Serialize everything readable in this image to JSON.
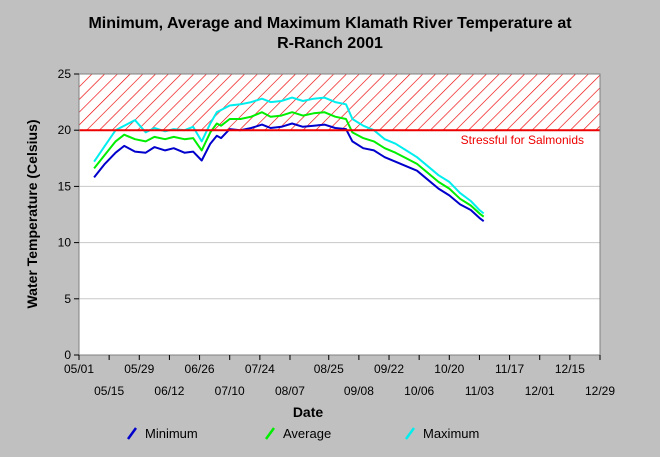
{
  "chart_data": {
    "type": "line",
    "title_line1": "Minimum, Average and Maximum Klamath River Temperature at",
    "title_line2": "R-Ranch 2001",
    "xlabel": "Date",
    "ylabel": "Water Temperature (Celsius)",
    "ylim": [
      0,
      25
    ],
    "yticks": [
      0,
      5,
      10,
      15,
      20,
      25
    ],
    "xlim": [
      "2001-05-01",
      "2001-12-29"
    ],
    "xticks_upper": [
      "05/01",
      "05/29",
      "06/26",
      "07/24",
      "08/25",
      "09/22",
      "10/20",
      "11/17",
      "12/15"
    ],
    "xticks_lower": [
      "05/15",
      "06/12",
      "07/10",
      "08/07",
      "09/08",
      "10/06",
      "11/03",
      "12/01",
      "12/29"
    ],
    "grid": "horizontal",
    "threshold": {
      "value": 20,
      "label": "Stressful for Salmonids",
      "color": "#ee0000",
      "band_top": 25
    },
    "series": [
      {
        "name": "Minimum",
        "color": "#0000cc",
        "points": [
          [
            "05/08",
            15.8
          ],
          [
            "05/13",
            17.0
          ],
          [
            "05/18",
            18.0
          ],
          [
            "05/22",
            18.6
          ],
          [
            "05/27",
            18.1
          ],
          [
            "06/01",
            18.0
          ],
          [
            "06/05",
            18.5
          ],
          [
            "06/10",
            18.2
          ],
          [
            "06/14",
            18.4
          ],
          [
            "06/19",
            18.0
          ],
          [
            "06/23",
            18.1
          ],
          [
            "06/27",
            17.3
          ],
          [
            "07/01",
            18.8
          ],
          [
            "07/04",
            19.5
          ],
          [
            "07/06",
            19.3
          ],
          [
            "07/10",
            20.1
          ],
          [
            "07/15",
            20.0
          ],
          [
            "07/20",
            20.2
          ],
          [
            "07/25",
            20.5
          ],
          [
            "07/29",
            20.2
          ],
          [
            "08/03",
            20.3
          ],
          [
            "08/08",
            20.6
          ],
          [
            "08/13",
            20.3
          ],
          [
            "08/18",
            20.4
          ],
          [
            "08/23",
            20.5
          ],
          [
            "08/28",
            20.2
          ],
          [
            "09/02",
            20.1
          ],
          [
            "09/05",
            19.0
          ],
          [
            "09/10",
            18.4
          ],
          [
            "09/15",
            18.2
          ],
          [
            "09/20",
            17.6
          ],
          [
            "09/25",
            17.2
          ],
          [
            "09/30",
            16.8
          ],
          [
            "10/05",
            16.4
          ],
          [
            "10/10",
            15.6
          ],
          [
            "10/15",
            14.8
          ],
          [
            "10/20",
            14.2
          ],
          [
            "10/25",
            13.4
          ],
          [
            "10/30",
            12.9
          ],
          [
            "11/03",
            12.2
          ],
          [
            "11/05",
            11.9
          ]
        ]
      },
      {
        "name": "Average",
        "color": "#00ee00",
        "points": [
          [
            "05/08",
            16.6
          ],
          [
            "05/13",
            17.8
          ],
          [
            "05/18",
            19.0
          ],
          [
            "05/22",
            19.6
          ],
          [
            "05/27",
            19.2
          ],
          [
            "06/01",
            19.0
          ],
          [
            "06/05",
            19.4
          ],
          [
            "06/10",
            19.2
          ],
          [
            "06/14",
            19.4
          ],
          [
            "06/19",
            19.2
          ],
          [
            "06/23",
            19.3
          ],
          [
            "06/27",
            18.2
          ],
          [
            "07/01",
            19.8
          ],
          [
            "07/04",
            20.6
          ],
          [
            "07/06",
            20.4
          ],
          [
            "07/10",
            21.0
          ],
          [
            "07/15",
            21.0
          ],
          [
            "07/20",
            21.2
          ],
          [
            "07/25",
            21.6
          ],
          [
            "07/29",
            21.2
          ],
          [
            "08/03",
            21.3
          ],
          [
            "08/08",
            21.6
          ],
          [
            "08/13",
            21.3
          ],
          [
            "08/18",
            21.5
          ],
          [
            "08/23",
            21.6
          ],
          [
            "08/28",
            21.2
          ],
          [
            "09/02",
            21.0
          ],
          [
            "09/05",
            19.8
          ],
          [
            "09/10",
            19.3
          ],
          [
            "09/15",
            19.0
          ],
          [
            "09/20",
            18.4
          ],
          [
            "09/25",
            18.0
          ],
          [
            "09/30",
            17.5
          ],
          [
            "10/05",
            17.0
          ],
          [
            "10/10",
            16.2
          ],
          [
            "10/15",
            15.4
          ],
          [
            "10/20",
            14.8
          ],
          [
            "10/25",
            13.9
          ],
          [
            "10/30",
            13.3
          ],
          [
            "11/03",
            12.6
          ],
          [
            "11/05",
            12.3
          ]
        ]
      },
      {
        "name": "Maximum",
        "color": "#00eeee",
        "points": [
          [
            "05/08",
            17.2
          ],
          [
            "05/13",
            18.6
          ],
          [
            "05/18",
            20.0
          ],
          [
            "05/22",
            20.4
          ],
          [
            "05/27",
            20.9
          ],
          [
            "06/01",
            19.8
          ],
          [
            "06/05",
            20.2
          ],
          [
            "06/10",
            19.9
          ],
          [
            "06/14",
            20.1
          ],
          [
            "06/19",
            20.0
          ],
          [
            "06/23",
            20.3
          ],
          [
            "06/27",
            19.0
          ],
          [
            "07/01",
            20.6
          ],
          [
            "07/04",
            21.6
          ],
          [
            "07/06",
            21.8
          ],
          [
            "07/10",
            22.2
          ],
          [
            "07/15",
            22.3
          ],
          [
            "07/20",
            22.5
          ],
          [
            "07/25",
            22.8
          ],
          [
            "07/29",
            22.5
          ],
          [
            "08/03",
            22.6
          ],
          [
            "08/08",
            22.9
          ],
          [
            "08/13",
            22.6
          ],
          [
            "08/18",
            22.8
          ],
          [
            "08/23",
            22.9
          ],
          [
            "08/28",
            22.5
          ],
          [
            "09/02",
            22.3
          ],
          [
            "09/05",
            21.0
          ],
          [
            "09/10",
            20.4
          ],
          [
            "09/15",
            20.0
          ],
          [
            "09/20",
            19.2
          ],
          [
            "09/25",
            18.8
          ],
          [
            "09/30",
            18.2
          ],
          [
            "10/05",
            17.6
          ],
          [
            "10/10",
            16.8
          ],
          [
            "10/15",
            16.0
          ],
          [
            "10/20",
            15.4
          ],
          [
            "10/25",
            14.4
          ],
          [
            "10/30",
            13.7
          ],
          [
            "11/03",
            12.9
          ],
          [
            "11/05",
            12.6
          ]
        ]
      }
    ]
  }
}
